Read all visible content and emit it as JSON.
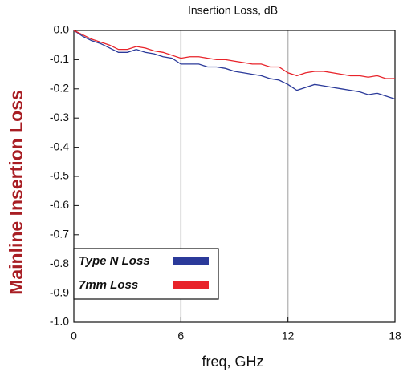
{
  "chart_data": {
    "type": "line",
    "title": "Insertion Loss, dB",
    "xlabel": "freq, GHz",
    "ylabel": "Mainline Insertion Loss",
    "x": [
      0,
      0.5,
      1,
      1.5,
      2,
      2.5,
      3,
      3.5,
      4,
      4.5,
      5,
      5.5,
      6,
      6.5,
      7,
      7.5,
      8,
      8.5,
      9,
      9.5,
      10,
      10.5,
      11,
      11.5,
      12,
      12.5,
      13,
      13.5,
      14,
      14.5,
      15,
      15.5,
      16,
      16.5,
      17,
      17.5,
      18
    ],
    "series": [
      {
        "name": "Type N Loss",
        "color": "#2b3a9a",
        "values": [
          0,
          -0.02,
          -0.035,
          -0.045,
          -0.06,
          -0.075,
          -0.075,
          -0.065,
          -0.075,
          -0.08,
          -0.09,
          -0.095,
          -0.115,
          -0.115,
          -0.115,
          -0.125,
          -0.125,
          -0.13,
          -0.14,
          -0.145,
          -0.15,
          -0.155,
          -0.165,
          -0.17,
          -0.185,
          -0.205,
          -0.195,
          -0.185,
          -0.19,
          -0.195,
          -0.2,
          -0.205,
          -0.21,
          -0.22,
          -0.215,
          -0.225,
          -0.235
        ]
      },
      {
        "name": "7mm Loss",
        "color": "#e8232a",
        "values": [
          0,
          -0.015,
          -0.03,
          -0.04,
          -0.05,
          -0.065,
          -0.065,
          -0.055,
          -0.06,
          -0.07,
          -0.075,
          -0.085,
          -0.095,
          -0.09,
          -0.09,
          -0.095,
          -0.1,
          -0.1,
          -0.105,
          -0.11,
          -0.115,
          -0.115,
          -0.125,
          -0.125,
          -0.145,
          -0.155,
          -0.145,
          -0.14,
          -0.14,
          -0.145,
          -0.15,
          -0.155,
          -0.155,
          -0.16,
          -0.155,
          -0.165,
          -0.165
        ]
      }
    ],
    "xlim": [
      0,
      18
    ],
    "xticks": [
      0,
      6,
      12,
      18
    ],
    "ylim": [
      -1,
      0
    ],
    "yticks": [
      {
        "value": 0,
        "label": "0.0"
      },
      -0.1,
      -0.2,
      -0.3,
      -0.4,
      -0.5,
      -0.6,
      -0.7,
      -0.8,
      -0.9,
      {
        "value": -1,
        "label": "-1.0"
      }
    ],
    "grid": "x",
    "legend": "lower left"
  }
}
